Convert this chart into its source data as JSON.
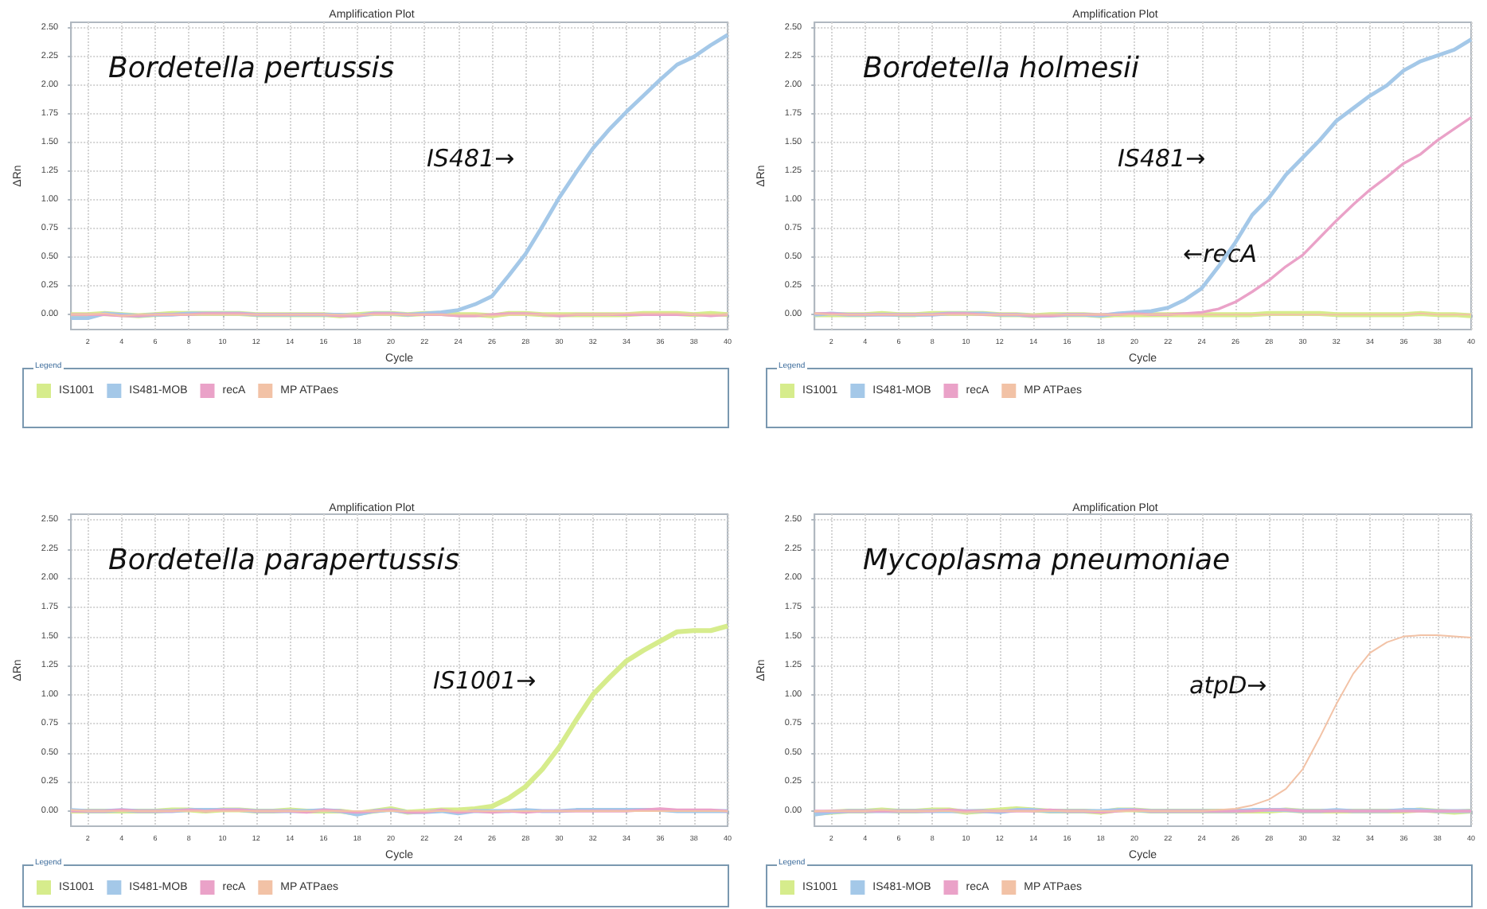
{
  "chart_data": [
    {
      "type": "line",
      "title": "Amplification Plot",
      "xlabel": "Cycle",
      "ylabel": "ΔRn",
      "legend_title": "Legend",
      "legend": "bottom",
      "grid": true,
      "marker": "none",
      "line_style": "solid",
      "annotations": [
        "Bordetella pertussis",
        "IS481→"
      ],
      "x": [
        1,
        2,
        3,
        4,
        5,
        6,
        7,
        8,
        9,
        10,
        11,
        12,
        13,
        14,
        15,
        16,
        17,
        18,
        19,
        20,
        21,
        22,
        23,
        24,
        25,
        26,
        27,
        28,
        29,
        30,
        31,
        32,
        33,
        34,
        35,
        36,
        37,
        38,
        39,
        40
      ],
      "xlim": [
        1,
        40
      ],
      "xticks": [
        2,
        4,
        6,
        8,
        10,
        12,
        14,
        16,
        18,
        20,
        22,
        24,
        26,
        28,
        30,
        32,
        34,
        36,
        38,
        40
      ],
      "ylim": [
        -0.13,
        2.55
      ],
      "yticks": [
        {
          "value": 0,
          "label": "0.00"
        },
        {
          "value": 0.25,
          "label": "0.25"
        },
        {
          "value": 0.5,
          "label": "0.50"
        },
        {
          "value": 0.75,
          "label": "0.75"
        },
        {
          "value": 1,
          "label": "1.00"
        },
        {
          "value": 1.25,
          "label": "1.25"
        },
        {
          "value": 1.5,
          "label": "1.50"
        },
        {
          "value": 1.75,
          "label": "1.75"
        },
        {
          "value": 2,
          "label": "2.00"
        },
        {
          "value": 2.25,
          "label": "2.25"
        },
        {
          "value": 2.5,
          "label": "2.50"
        }
      ],
      "series": [
        {
          "name": "IS1001",
          "color": "#d6ec8c",
          "values": [
            0,
            0,
            0.01,
            0,
            -0.01,
            0,
            0.01,
            0.01,
            0.01,
            0.01,
            0.01,
            0,
            0,
            0,
            0,
            0,
            -0.01,
            0,
            0.01,
            0.01,
            0,
            0.01,
            0.01,
            0,
            0,
            -0.01,
            0.01,
            0.01,
            0,
            0,
            0,
            0,
            0,
            0,
            0.01,
            0.01,
            0.01,
            0,
            0.01,
            0
          ]
        },
        {
          "name": "IS481-MOB",
          "color": "#a4c8e8",
          "values": [
            -0.03,
            -0.03,
            0.01,
            0,
            -0.01,
            0,
            0,
            0.01,
            0.01,
            0.01,
            0.01,
            0,
            0,
            0,
            0,
            0,
            0,
            -0.01,
            0.01,
            0.01,
            0,
            0.01,
            0.02,
            0.04,
            0.09,
            0.16,
            0.34,
            0.53,
            0.77,
            1.02,
            1.24,
            1.45,
            1.62,
            1.77,
            1.91,
            2.05,
            2.18,
            2.25,
            2.35,
            2.44
          ]
        },
        {
          "name": "recA",
          "color": "#eaa2c8",
          "values": [
            0,
            0,
            0,
            -0.01,
            -0.01,
            0,
            0,
            0,
            0.01,
            0.01,
            0.01,
            0,
            0,
            0,
            0,
            0,
            -0.01,
            -0.01,
            0.01,
            0.01,
            0,
            0,
            0,
            -0.01,
            -0.01,
            0,
            0.01,
            0.01,
            0,
            -0.01,
            0,
            0,
            0,
            0,
            0,
            0,
            0,
            0,
            -0.01,
            0
          ]
        },
        {
          "name": "MP ATPaes",
          "color": "#f2c2a6",
          "values": [
            0,
            0,
            0.01,
            -0.01,
            0,
            0,
            0,
            0,
            0,
            0,
            0,
            0,
            0,
            0,
            0,
            0,
            0,
            0,
            0,
            0,
            0,
            0,
            0,
            0,
            0,
            -0.01,
            0,
            0,
            0,
            0,
            0,
            0,
            0,
            0.01,
            0.01,
            0.01,
            0.01,
            0,
            0,
            0
          ]
        }
      ]
    },
    {
      "type": "line",
      "title": "Amplification Plot",
      "xlabel": "Cycle",
      "ylabel": "ΔRn",
      "legend_title": "Legend",
      "legend": "bottom",
      "grid": true,
      "marker": "none",
      "line_style": "solid",
      "annotations": [
        "Bordetella holmesii",
        "IS481→",
        "←recA"
      ],
      "x": [
        1,
        2,
        3,
        4,
        5,
        6,
        7,
        8,
        9,
        10,
        11,
        12,
        13,
        14,
        15,
        16,
        17,
        18,
        19,
        20,
        21,
        22,
        23,
        24,
        25,
        26,
        27,
        28,
        29,
        30,
        31,
        32,
        33,
        34,
        35,
        36,
        37,
        38,
        39,
        40
      ],
      "xlim": [
        1,
        40
      ],
      "xticks": [
        2,
        4,
        6,
        8,
        10,
        12,
        14,
        16,
        18,
        20,
        22,
        24,
        26,
        28,
        30,
        32,
        34,
        36,
        38,
        40
      ],
      "ylim": [
        -0.13,
        2.55
      ],
      "yticks": [
        {
          "value": 0,
          "label": "0.00"
        },
        {
          "value": 0.25,
          "label": "0.25"
        },
        {
          "value": 0.5,
          "label": "0.50"
        },
        {
          "value": 0.75,
          "label": "0.75"
        },
        {
          "value": 1,
          "label": "1.00"
        },
        {
          "value": 1.25,
          "label": "1.25"
        },
        {
          "value": 1.5,
          "label": "1.50"
        },
        {
          "value": 1.75,
          "label": "1.75"
        },
        {
          "value": 2,
          "label": "2.00"
        },
        {
          "value": 2.25,
          "label": "2.25"
        },
        {
          "value": 2.5,
          "label": "2.50"
        }
      ],
      "series": [
        {
          "name": "IS1001",
          "color": "#d6ec8c",
          "values": [
            0,
            0,
            0,
            0,
            0.01,
            0,
            0,
            0.01,
            0.01,
            0.01,
            0.01,
            0,
            0,
            -0.01,
            0,
            0,
            0,
            -0.01,
            0,
            0,
            0,
            0,
            0,
            0,
            0,
            0,
            0,
            0.01,
            0.01,
            0.01,
            0.01,
            0,
            0,
            0,
            0,
            0,
            0.01,
            0,
            0,
            -0.01
          ]
        },
        {
          "name": "IS481-MOB",
          "color": "#a4c8e8",
          "values": [
            0,
            0.01,
            0,
            0,
            0,
            0,
            0,
            0,
            0.01,
            0.01,
            0.01,
            0,
            0,
            -0.01,
            -0.01,
            0,
            0,
            -0.01,
            0.01,
            0.02,
            0.03,
            0.06,
            0.13,
            0.23,
            0.42,
            0.63,
            0.87,
            1.02,
            1.22,
            1.37,
            1.52,
            1.69,
            1.8,
            1.91,
            2,
            2.13,
            2.21,
            2.26,
            2.31,
            2.4
          ]
        },
        {
          "name": "recA",
          "color": "#eaa2c8",
          "values": [
            0.01,
            0.01,
            0,
            0,
            0,
            0,
            0,
            0,
            0.01,
            0.01,
            0,
            0,
            0,
            -0.01,
            -0.01,
            0,
            0,
            0,
            0,
            0.01,
            0,
            0,
            0.01,
            0.02,
            0.05,
            0.11,
            0.2,
            0.3,
            0.42,
            0.52,
            0.67,
            0.82,
            0.96,
            1.09,
            1.2,
            1.32,
            1.4,
            1.52,
            1.62,
            1.72
          ]
        },
        {
          "name": "MP ATPaes",
          "color": "#f2c2a6",
          "values": [
            0.01,
            0,
            0,
            0,
            0,
            0,
            0,
            0,
            0,
            0,
            0,
            0,
            0,
            0,
            0,
            0,
            0,
            0,
            0,
            0,
            0,
            0,
            0,
            0,
            0,
            0,
            0,
            0,
            0,
            0,
            0,
            0,
            0,
            0,
            0,
            0,
            0.01,
            0,
            0,
            0
          ]
        }
      ]
    },
    {
      "type": "line",
      "title": "Amplification Plot",
      "xlabel": "Cycle",
      "ylabel": "ΔRn",
      "legend_title": "Legend",
      "legend": "bottom",
      "grid": true,
      "marker": "none",
      "line_style": "solid",
      "annotations": [
        "Bordetella parapertussis",
        "IS1001→"
      ],
      "x": [
        1,
        2,
        3,
        4,
        5,
        6,
        7,
        8,
        9,
        10,
        11,
        12,
        13,
        14,
        15,
        16,
        17,
        18,
        19,
        20,
        21,
        22,
        23,
        24,
        25,
        26,
        27,
        28,
        29,
        30,
        31,
        32,
        33,
        34,
        35,
        36,
        37,
        38,
        39,
        40
      ],
      "xlim": [
        1,
        40
      ],
      "xticks": [
        2,
        4,
        6,
        8,
        10,
        12,
        14,
        16,
        18,
        20,
        22,
        24,
        26,
        28,
        30,
        32,
        34,
        36,
        38,
        40
      ],
      "ylim": [
        -0.13,
        2.55
      ],
      "yticks": [
        {
          "value": 0,
          "label": "0.00"
        },
        {
          "value": 0.25,
          "label": "0.25"
        },
        {
          "value": 0.5,
          "label": "0.50"
        },
        {
          "value": 0.75,
          "label": "0.75"
        },
        {
          "value": 1,
          "label": "1.00"
        },
        {
          "value": 1.25,
          "label": "1.25"
        },
        {
          "value": 1.5,
          "label": "1.50"
        },
        {
          "value": 1.75,
          "label": "1.75"
        },
        {
          "value": 2,
          "label": "2.00"
        },
        {
          "value": 2.25,
          "label": "2.25"
        },
        {
          "value": 2.5,
          "label": "2.50"
        }
      ],
      "series": [
        {
          "name": "IS1001",
          "color": "#d6ec8c",
          "values": [
            0,
            0,
            0,
            0,
            0,
            0,
            0.01,
            0.01,
            0,
            0.01,
            0.01,
            0,
            0,
            0.01,
            0,
            0,
            0,
            -0.02,
            0,
            0.02,
            -0.01,
            0,
            0.01,
            0.01,
            0.02,
            0.04,
            0.11,
            0.21,
            0.36,
            0.55,
            0.78,
            1,
            1.15,
            1.29,
            1.38,
            1.46,
            1.54,
            1.55,
            1.55,
            1.59
          ]
        },
        {
          "name": "IS481-MOB",
          "color": "#a4c8e8",
          "values": [
            0.01,
            0,
            0,
            0.01,
            0,
            0,
            0,
            0.01,
            0.01,
            0.01,
            0.01,
            0,
            0,
            0,
            0,
            0.01,
            0,
            -0.03,
            0,
            0.01,
            -0.01,
            -0.01,
            0,
            -0.02,
            0,
            0,
            0,
            0.01,
            0,
            0,
            0.01,
            0.01,
            0.01,
            0.01,
            0.01,
            0.01,
            0,
            0,
            0,
            0
          ]
        },
        {
          "name": "recA",
          "color": "#eaa2c8",
          "values": [
            0,
            0,
            0,
            0.01,
            0,
            0,
            0,
            0.01,
            0,
            0.01,
            0.01,
            0,
            0,
            0,
            -0.01,
            0.01,
            0,
            -0.01,
            0,
            0.01,
            -0.01,
            -0.01,
            0.01,
            -0.01,
            0,
            -0.01,
            0,
            -0.01,
            0,
            0,
            0,
            0,
            0,
            0,
            0.01,
            0.02,
            0.01,
            0.01,
            0.01,
            0
          ]
        },
        {
          "name": "MP ATPaes",
          "color": "#f2c2a6",
          "values": [
            0.01,
            0,
            0,
            0,
            0,
            0,
            0,
            0,
            0,
            0,
            0,
            0,
            0,
            0,
            0,
            0,
            0,
            0,
            0,
            0,
            0,
            0,
            0,
            0,
            0,
            0,
            0,
            0,
            0,
            0,
            0,
            0,
            0,
            0,
            0,
            0,
            0,
            0,
            0,
            0
          ]
        }
      ]
    },
    {
      "type": "line",
      "title": "Amplification Plot",
      "xlabel": "Cycle",
      "ylabel": "ΔRn",
      "legend_title": "Legend",
      "legend": "bottom",
      "grid": true,
      "marker": "none",
      "line_style": "solid",
      "annotations": [
        "Mycoplasma pneumoniae",
        "atpD→"
      ],
      "x": [
        1,
        2,
        3,
        4,
        5,
        6,
        7,
        8,
        9,
        10,
        11,
        12,
        13,
        14,
        15,
        16,
        17,
        18,
        19,
        20,
        21,
        22,
        23,
        24,
        25,
        26,
        27,
        28,
        29,
        30,
        31,
        32,
        33,
        34,
        35,
        36,
        37,
        38,
        39,
        40
      ],
      "xlim": [
        1,
        40
      ],
      "xticks": [
        2,
        4,
        6,
        8,
        10,
        12,
        14,
        16,
        18,
        20,
        22,
        24,
        26,
        28,
        30,
        32,
        34,
        36,
        38,
        40
      ],
      "ylim": [
        -0.13,
        2.55
      ],
      "yticks": [
        {
          "value": 0,
          "label": "0.00"
        },
        {
          "value": 0.25,
          "label": "0.25"
        },
        {
          "value": 0.5,
          "label": "0.50"
        },
        {
          "value": 0.75,
          "label": "0.75"
        },
        {
          "value": 1,
          "label": "1.00"
        },
        {
          "value": 1.25,
          "label": "1.25"
        },
        {
          "value": 1.5,
          "label": "1.50"
        },
        {
          "value": 1.75,
          "label": "1.75"
        },
        {
          "value": 2,
          "label": "2.00"
        },
        {
          "value": 2.25,
          "label": "2.25"
        },
        {
          "value": 2.5,
          "label": "2.50"
        }
      ],
      "series": [
        {
          "name": "IS1001",
          "color": "#d6ec8c",
          "values": [
            -0.02,
            -0.01,
            0,
            0,
            0.01,
            0,
            0,
            0.01,
            0.01,
            -0.01,
            0,
            0.01,
            0.02,
            0.01,
            0,
            0,
            0,
            -0.01,
            0.01,
            0.01,
            0,
            0,
            0,
            0,
            0,
            0,
            0,
            0,
            0.01,
            0,
            0,
            0,
            0,
            0,
            0,
            0,
            0.01,
            0,
            -0.01,
            0
          ]
        },
        {
          "name": "IS481-MOB",
          "color": "#a4c8e8",
          "values": [
            -0.03,
            -0.01,
            0,
            0,
            0,
            0,
            0,
            0,
            0,
            0,
            0,
            -0.01,
            0.01,
            0.01,
            0,
            0,
            0,
            0,
            0.01,
            0.01,
            0,
            0,
            0,
            0,
            0,
            0,
            0.01,
            0.01,
            0.01,
            0,
            0,
            0.01,
            0,
            0,
            0,
            0.01,
            0.01,
            0,
            0,
            0
          ]
        },
        {
          "name": "recA",
          "color": "#eaa2c8",
          "values": [
            0,
            0,
            0,
            0,
            0,
            0,
            0,
            0,
            0.01,
            0,
            0,
            0,
            0,
            0,
            0.01,
            0,
            0,
            -0.01,
            0,
            0.01,
            0,
            0,
            0,
            0,
            0,
            0,
            0,
            0.01,
            0.01,
            0,
            0,
            0,
            0,
            0,
            0,
            0,
            0,
            0,
            0,
            0
          ]
        },
        {
          "name": "MP ATPaes",
          "color": "#f2c2a6",
          "values": [
            0,
            0,
            0,
            0,
            0.01,
            0,
            0,
            0,
            0,
            -0.01,
            0,
            0,
            0,
            0,
            0,
            0,
            0,
            0,
            0,
            0,
            0,
            0,
            0,
            0,
            0.01,
            0.02,
            0.05,
            0.1,
            0.19,
            0.36,
            0.63,
            0.92,
            1.18,
            1.36,
            1.45,
            1.5,
            1.51,
            1.51,
            1.5,
            1.49
          ]
        }
      ]
    }
  ]
}
